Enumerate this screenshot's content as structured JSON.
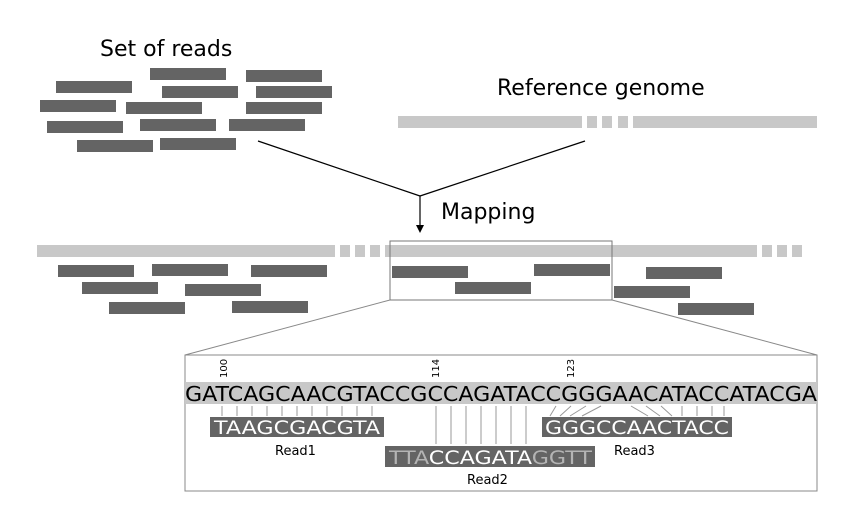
{
  "labels": {
    "set_of_reads": "Set of reads",
    "reference_genome": "Reference genome",
    "mapping": "Mapping"
  },
  "positions": [
    "100",
    "114",
    "123"
  ],
  "reference_sequence": "GATCAGCAACGTACCGCCAGATACCGGGAACATACCATACGA",
  "reads": [
    {
      "name": "Read1",
      "sequence": "TAAGCGACGTA"
    },
    {
      "name": "Read2",
      "sequence_prefix": "TTA",
      "sequence_core": "CCAGATA",
      "sequence_suffix": "GGTT"
    },
    {
      "name": "Read3",
      "sequence": "GGGCCAACTACC"
    }
  ],
  "colors": {
    "read_bar": "#646464",
    "reference_bar": "#c8c8c8",
    "soft_clip_text": "#b4b4b4",
    "read_text": "#ffffff",
    "line": "#000000",
    "zoom_line": "#888888"
  }
}
